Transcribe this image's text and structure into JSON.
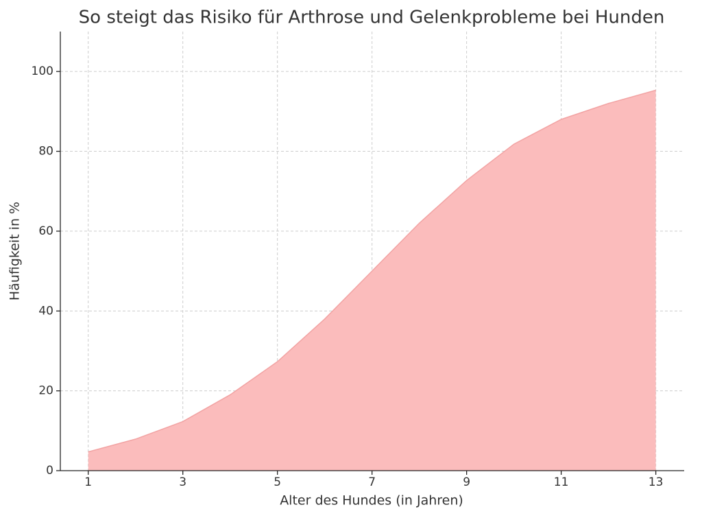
{
  "chart_data": {
    "type": "area",
    "title": "So steigt das Risiko für Arthrose und Gelenkprobleme bei Hunden",
    "xlabel": "Alter des Hundes (in Jahren)",
    "ylabel": "Häufigkeit in %",
    "x": [
      1,
      2,
      3,
      4,
      5,
      6,
      7,
      8,
      9,
      10,
      11,
      12,
      13
    ],
    "values": [
      4.7,
      7.9,
      12.3,
      19,
      27.3,
      38,
      50,
      62,
      72.7,
      81.8,
      88,
      92,
      95.3
    ],
    "color": "#fbbcbc",
    "line_color": "#f2a3a3",
    "xlim": [
      0.41,
      13.6
    ],
    "xticks": [
      1,
      3,
      5,
      7,
      9,
      11,
      13
    ],
    "ylim": [
      0,
      110
    ],
    "yticks": [
      0,
      20,
      40,
      60,
      80,
      100
    ],
    "grid": true
  }
}
